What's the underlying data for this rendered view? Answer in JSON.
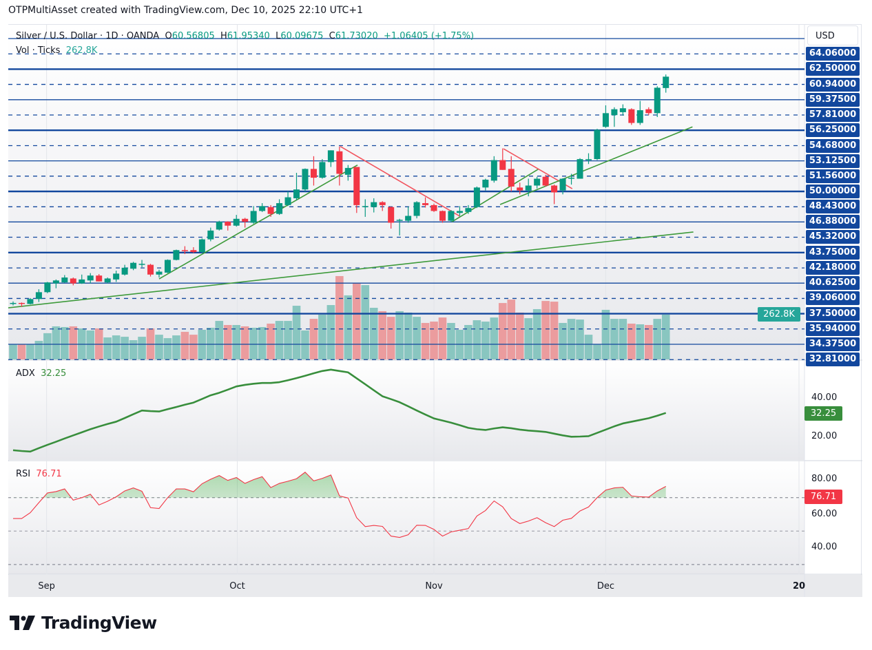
{
  "credit": "OTPMultiAsset created with TradingView.com, Dec 10, 2025 22:10 UTC+1",
  "legend": {
    "symbol": "Silver / U.S. Dollar · 1D · OANDA",
    "o_label": "O",
    "o": "60.56805",
    "h_label": "H",
    "h": "61.95340",
    "l_label": "L",
    "l": "60.09675",
    "c_label": "C",
    "c": "61.73020",
    "change": "+1.06405 (+1.75%)",
    "vol_label": "Vol · Ticks",
    "vol": "262.8K"
  },
  "currency": "USD",
  "colors": {
    "up": "#089981",
    "down": "#f23645",
    "vol_up": "#89c6c0",
    "vol_down": "#eb9c9e",
    "level": "#12479d",
    "trend_green": "#3d9a3a",
    "trend_red": "#f2545e",
    "adx": "#388e3c",
    "rsi": "#f23645"
  },
  "price_axis": {
    "levels": [
      {
        "price": 65.625,
        "style": "solid",
        "label": ""
      },
      {
        "price": 64.06,
        "style": "dashed",
        "label": "64.06000"
      },
      {
        "price": 62.5,
        "style": "thick",
        "label": "62.50000"
      },
      {
        "price": 60.94,
        "style": "dashed",
        "label": "60.94000"
      },
      {
        "price": 59.375,
        "style": "solid",
        "label": "59.37500"
      },
      {
        "price": 57.81,
        "style": "dashed",
        "label": "57.81000"
      },
      {
        "price": 56.25,
        "style": "thick",
        "label": "56.25000"
      },
      {
        "price": 54.68,
        "style": "dashed",
        "label": "54.68000"
      },
      {
        "price": 53.125,
        "style": "solid",
        "label": "53.12500"
      },
      {
        "price": 51.56,
        "style": "dashed",
        "label": "51.56000"
      },
      {
        "price": 50.0,
        "style": "thick",
        "label": "50.00000"
      },
      {
        "price": 48.43,
        "style": "dashed",
        "label": "48.43000"
      },
      {
        "price": 46.88,
        "style": "solid",
        "label": "46.88000"
      },
      {
        "price": 45.32,
        "style": "dashed",
        "label": "45.32000"
      },
      {
        "price": 43.75,
        "style": "thick",
        "label": "43.75000"
      },
      {
        "price": 42.18,
        "style": "dashed",
        "label": "42.18000"
      },
      {
        "price": 40.625,
        "style": "solid",
        "label": "40.62500"
      },
      {
        "price": 39.06,
        "style": "dashed",
        "label": "39.06000"
      },
      {
        "price": 37.5,
        "style": "thick",
        "label": "37.50000"
      },
      {
        "price": 35.94,
        "style": "dashed",
        "label": "35.94000"
      },
      {
        "price": 34.375,
        "style": "solid",
        "label": "34.37500"
      },
      {
        "price": 32.81,
        "style": "dashed",
        "label": "32.81000"
      }
    ],
    "volume_badge": "262.8K"
  },
  "time_axis": [
    {
      "label": "Sep",
      "bar": 3.9
    },
    {
      "label": "Oct",
      "bar": 26.1
    },
    {
      "label": "Nov",
      "bar": 49.0
    },
    {
      "label": "Dec",
      "bar": 69.0
    },
    {
      "label": "20",
      "bar": 91.5
    }
  ],
  "adx": {
    "label": "ADX",
    "value": "32.25",
    "ticks": [
      "40.00",
      "20.00"
    ]
  },
  "rsi": {
    "label": "RSI",
    "value": "76.71",
    "ticks": [
      "80.00",
      "60.00",
      "40.00"
    ]
  },
  "chart_data": {
    "type": "candlestick",
    "symbol": "Silver / U.S. Dollar",
    "interval": "1D",
    "ohlc": [
      [
        38.55,
        38.75,
        38.35,
        38.6
      ],
      [
        38.6,
        38.65,
        38.2,
        38.55
      ],
      [
        38.5,
        39.1,
        38.45,
        39.0
      ],
      [
        39.0,
        40.0,
        38.7,
        39.7
      ],
      [
        39.7,
        40.75,
        39.6,
        40.7
      ],
      [
        40.6,
        41.0,
        40.1,
        40.9
      ],
      [
        40.7,
        41.45,
        40.65,
        41.2
      ],
      [
        41.1,
        41.2,
        40.4,
        40.6
      ],
      [
        40.6,
        41.5,
        40.55,
        41.0
      ],
      [
        40.9,
        41.65,
        40.6,
        41.4
      ],
      [
        41.4,
        41.55,
        40.8,
        40.8
      ],
      [
        40.7,
        41.2,
        40.6,
        41.1
      ],
      [
        41.0,
        41.9,
        40.75,
        41.6
      ],
      [
        41.5,
        42.5,
        41.4,
        42.2
      ],
      [
        42.1,
        42.8,
        41.95,
        42.7
      ],
      [
        42.6,
        43.0,
        42.25,
        42.6
      ],
      [
        42.5,
        42.6,
        41.3,
        41.5
      ],
      [
        41.5,
        42.0,
        41.2,
        41.8
      ],
      [
        41.7,
        43.05,
        41.65,
        43.0
      ],
      [
        43.0,
        44.05,
        42.95,
        44.0
      ],
      [
        44.0,
        44.4,
        43.6,
        43.95
      ],
      [
        44.0,
        44.3,
        43.7,
        43.8
      ],
      [
        43.8,
        45.2,
        43.7,
        45.1
      ],
      [
        45.1,
        46.3,
        44.9,
        46.0
      ],
      [
        46.1,
        47.0,
        46.0,
        46.9
      ],
      [
        46.9,
        46.95,
        46.0,
        46.5
      ],
      [
        46.5,
        47.6,
        46.4,
        47.2
      ],
      [
        47.2,
        47.3,
        46.3,
        46.9
      ],
      [
        46.8,
        48.5,
        46.7,
        48.0
      ],
      [
        48.0,
        48.8,
        47.9,
        48.5
      ],
      [
        48.4,
        48.6,
        47.4,
        47.7
      ],
      [
        47.7,
        49.2,
        47.6,
        48.8
      ],
      [
        48.6,
        50.0,
        48.5,
        49.4
      ],
      [
        49.3,
        51.9,
        49.1,
        50.2
      ],
      [
        50.2,
        52.35,
        50.0,
        52.3
      ],
      [
        52.3,
        53.6,
        50.6,
        51.4
      ],
      [
        51.4,
        53.3,
        51.3,
        53.0
      ],
      [
        53.0,
        54.2,
        52.5,
        54.2
      ],
      [
        54.1,
        54.6,
        50.6,
        51.8
      ],
      [
        51.7,
        52.7,
        51.1,
        52.4
      ],
      [
        52.5,
        52.5,
        47.8,
        48.6
      ],
      [
        48.5,
        49.2,
        47.4,
        48.5
      ],
      [
        48.4,
        49.3,
        47.85,
        48.9
      ],
      [
        48.9,
        49.0,
        48.0,
        48.6
      ],
      [
        48.4,
        48.45,
        46.2,
        46.8
      ],
      [
        47.0,
        47.2,
        45.5,
        47.1
      ],
      [
        47.0,
        48.45,
        46.8,
        47.5
      ],
      [
        47.5,
        49.0,
        47.25,
        48.9
      ],
      [
        48.8,
        49.4,
        48.35,
        48.6
      ],
      [
        48.6,
        48.75,
        47.9,
        48.0
      ],
      [
        48.0,
        48.05,
        46.8,
        47.0
      ],
      [
        47.0,
        48.1,
        46.9,
        48.0
      ],
      [
        47.8,
        48.5,
        47.5,
        48.0
      ],
      [
        47.9,
        48.6,
        47.7,
        48.3
      ],
      [
        48.4,
        50.5,
        48.3,
        50.4
      ],
      [
        50.4,
        51.3,
        50.1,
        51.2
      ],
      [
        51.1,
        53.6,
        50.9,
        53.2
      ],
      [
        53.2,
        54.4,
        52.2,
        52.2
      ],
      [
        52.3,
        53.6,
        50.0,
        50.5
      ],
      [
        50.4,
        50.9,
        49.7,
        50.1
      ],
      [
        50.1,
        51.3,
        49.5,
        50.6
      ],
      [
        50.6,
        51.5,
        50.3,
        51.3
      ],
      [
        51.5,
        51.7,
        50.5,
        50.6
      ],
      [
        50.6,
        50.7,
        48.7,
        49.9
      ],
      [
        50.1,
        51.35,
        49.7,
        51.3
      ],
      [
        51.3,
        51.8,
        50.7,
        51.4
      ],
      [
        51.3,
        53.4,
        51.3,
        53.3
      ],
      [
        53.3,
        53.9,
        52.8,
        53.3
      ],
      [
        53.3,
        56.4,
        53.2,
        56.3
      ],
      [
        56.6,
        58.8,
        56.5,
        58.0
      ],
      [
        57.8,
        58.6,
        56.6,
        58.4
      ],
      [
        58.1,
        58.9,
        57.75,
        58.5
      ],
      [
        58.4,
        58.5,
        56.8,
        57.0
      ],
      [
        57.0,
        59.25,
        56.8,
        58.3
      ],
      [
        58.4,
        58.6,
        57.8,
        58.0
      ],
      [
        58.0,
        60.75,
        57.6,
        60.6
      ],
      [
        60.56805,
        61.9534,
        60.09675,
        61.7302
      ]
    ],
    "volume_k": [
      89,
      89,
      89,
      109,
      154,
      194,
      190,
      194,
      182,
      170,
      182,
      129,
      141,
      133,
      113,
      133,
      182,
      145,
      125,
      141,
      162,
      145,
      174,
      186,
      226,
      202,
      202,
      194,
      186,
      190,
      210,
      226,
      226,
      315,
      170,
      238,
      263,
      319,
      489,
      376,
      448,
      436,
      303,
      283,
      250,
      283,
      275,
      250,
      214,
      222,
      246,
      214,
      174,
      202,
      230,
      222,
      246,
      331,
      351,
      275,
      242,
      295,
      343,
      339,
      214,
      238,
      234,
      145,
      89,
      291,
      238,
      238,
      210,
      206,
      202,
      238,
      262.8
    ],
    "adx": [
      12.9,
      12.5,
      12.2,
      14,
      15.7,
      17.3,
      19,
      20.6,
      22.2,
      23.8,
      25.2,
      26.5,
      27.7,
      29.6,
      31.6,
      33.5,
      33.2,
      33,
      34.2,
      35.3,
      36.5,
      37.6,
      39.5,
      41.4,
      42.7,
      44.3,
      46,
      46.8,
      47.4,
      47.8,
      47.8,
      48.2,
      49.2,
      50.3,
      51.5,
      52.8,
      54,
      54.7,
      54,
      53.3,
      50.2,
      47.1,
      44,
      40.9,
      39.4,
      37.8,
      35.7,
      33.5,
      31.4,
      29.4,
      28.3,
      27.2,
      25.9,
      24.5,
      23.8,
      23.4,
      24.2,
      24.8,
      24.3,
      23.6,
      23.1,
      22.8,
      22.4,
      21.5,
      20.6,
      19.9,
      20,
      20.2,
      21.9,
      23.6,
      25.3,
      26.8,
      27.7,
      28.6,
      29.5,
      30.8,
      32.25
    ],
    "rsi": [
      57.5,
      57.5,
      61,
      67,
      72.8,
      73.6,
      75.2,
      68.5,
      70,
      72,
      65.6,
      67.8,
      70.5,
      74,
      75.8,
      73.8,
      64,
      63.5,
      70,
      75.2,
      75.2,
      73.5,
      78.3,
      81,
      83.2,
      80.3,
      82,
      78.5,
      80.8,
      82.5,
      76,
      78.5,
      79.8,
      81.3,
      85.2,
      80,
      81.5,
      83.5,
      71,
      69.8,
      58,
      52.7,
      53.4,
      52.8,
      47,
      46.2,
      47.8,
      53.5,
      53.4,
      51,
      47,
      49.5,
      50.5,
      51.5,
      59,
      62.3,
      68,
      64.5,
      57.5,
      54.5,
      56,
      58,
      55,
      52.7,
      56.5,
      57.6,
      62,
      64.4,
      70,
      74.5,
      75.8,
      76.2,
      71,
      70.5,
      70.3,
      74,
      76.71
    ],
    "rsi_bands": [
      70,
      50,
      30
    ],
    "trendlines": [
      {
        "color": "green",
        "from": [
          -0.6,
          38.1
        ],
        "to": [
          79.2,
          45.85
        ]
      },
      {
        "color": "green",
        "from": [
          17.0,
          41.06
        ],
        "to": [
          40.1,
          52.7
        ]
      },
      {
        "color": "red",
        "from": [
          38.1,
          54.6
        ],
        "to": [
          52.0,
          47.47
        ]
      },
      {
        "color": "green",
        "from": [
          51.1,
          46.9
        ],
        "to": [
          61.2,
          52.3
        ]
      },
      {
        "color": "red",
        "from": [
          57.1,
          54.36
        ],
        "to": [
          65.1,
          50.28
        ]
      },
      {
        "color": "green",
        "from": [
          56.7,
          48.66
        ],
        "to": [
          79.1,
          56.6
        ]
      }
    ]
  }
}
